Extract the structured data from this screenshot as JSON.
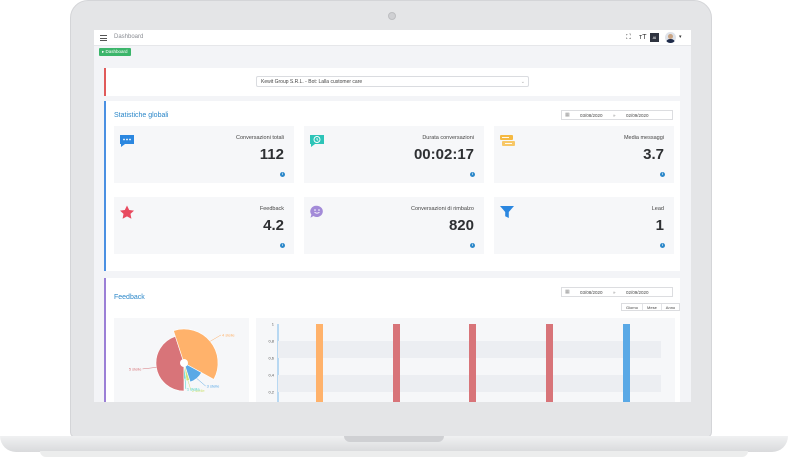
{
  "header": {
    "breadcrumb": "Dashboard",
    "dashboard_button": "▸ Dashboard",
    "lang_label": "AI"
  },
  "bot_selector": {
    "value": "Kewit Group S.R.L. - Bot: Lalla customer care"
  },
  "global_stats": {
    "title": "Statistiche globali",
    "date_from": "03/08/2020",
    "date_sep": "»",
    "date_to": "02/09/2020",
    "items": [
      {
        "label": "Conversazioni totali",
        "value": "112",
        "icon": "chat-bubble-icon",
        "color": "#2b87e0"
      },
      {
        "label": "Durata conversazioni",
        "value": "00:02:17",
        "icon": "clock-bubble-icon",
        "color": "#2dc4b8"
      },
      {
        "label": "Media messaggi",
        "value": "3.7",
        "icon": "messages-icon",
        "color": "#f5b942"
      },
      {
        "label": "Feedback",
        "value": "4.2",
        "icon": "star-icon",
        "color": "#e84a5f"
      },
      {
        "label": "Conversazioni di rimbalzo",
        "value": "820",
        "icon": "smiley-bubble-icon",
        "color": "#a38bd8"
      },
      {
        "label": "Lead",
        "value": "1",
        "icon": "funnel-icon",
        "color": "#2b87e0"
      }
    ]
  },
  "feedback": {
    "title": "Feedback",
    "date_from": "03/08/2020",
    "date_sep": "»",
    "date_to": "02/09/2020",
    "range_tabs": [
      "Giorno",
      "Mese",
      "Anno"
    ]
  },
  "chart_data": [
    {
      "type": "pie",
      "labels": [
        "5 stelle",
        "4 stelle",
        "3 stelle",
        "2 stelle",
        "1 stella"
      ],
      "values": [
        45,
        38,
        12,
        3,
        2
      ],
      "colors": [
        "#d87479",
        "#ffb26b",
        "#5aa9e6",
        "#cfe27a",
        "#45d0c8"
      ]
    },
    {
      "type": "bar",
      "yticks": [
        "1",
        "0,8",
        "0,6",
        "0,4",
        "0,2"
      ],
      "values": [
        1,
        1,
        1,
        1,
        1
      ],
      "colors": [
        "#ffb26b",
        "#d87479",
        "#d87479",
        "#d87479",
        "#5aa9e6"
      ]
    }
  ]
}
